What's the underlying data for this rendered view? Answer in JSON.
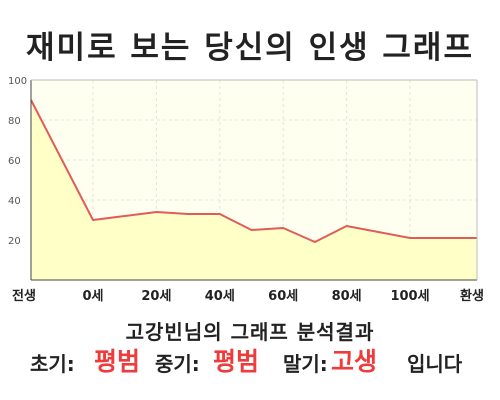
{
  "header": {
    "title": "재미로 보는 당신의 인생 그래프"
  },
  "chart_data": {
    "type": "area",
    "title": "재미로 보는 당신의 인생 그래프",
    "xlabel": "",
    "ylabel": "",
    "x_categories": [
      "전생",
      "0세",
      "20세",
      "40세",
      "60세",
      "80세",
      "100세",
      "환생"
    ],
    "y_ticks": [
      20,
      40,
      60,
      80,
      100
    ],
    "ylim": [
      0,
      100
    ],
    "grid": true,
    "series": [
      {
        "points": [
          {
            "x": "전생",
            "y": 90
          },
          {
            "x": "0세",
            "y": 30
          },
          {
            "x": "10세",
            "y": 32
          },
          {
            "x": "20세",
            "y": 34
          },
          {
            "x": "30세",
            "y": 33
          },
          {
            "x": "40세",
            "y": 33
          },
          {
            "x": "50세",
            "y": 25
          },
          {
            "x": "60세",
            "y": 26
          },
          {
            "x": "70세",
            "y": 19
          },
          {
            "x": "80세",
            "y": 27
          },
          {
            "x": "90세",
            "y": 24
          },
          {
            "x": "100세",
            "y": 21
          },
          {
            "x": "환생",
            "y": 21
          }
        ]
      }
    ],
    "colors": {
      "line": "#e25b5b",
      "fill": "#ffffc8",
      "plot_bg": "#fffff0",
      "grid": "#e4e4d8",
      "axis": "#444444"
    }
  },
  "result": {
    "summary": "고강빈님의 그래프 분석결과",
    "early_label": "초기:",
    "early_value": "평범",
    "middle_label": "중기:",
    "middle_value": "평범",
    "late_label": "말기:",
    "late_value": "고생",
    "suffix": "입니다"
  }
}
